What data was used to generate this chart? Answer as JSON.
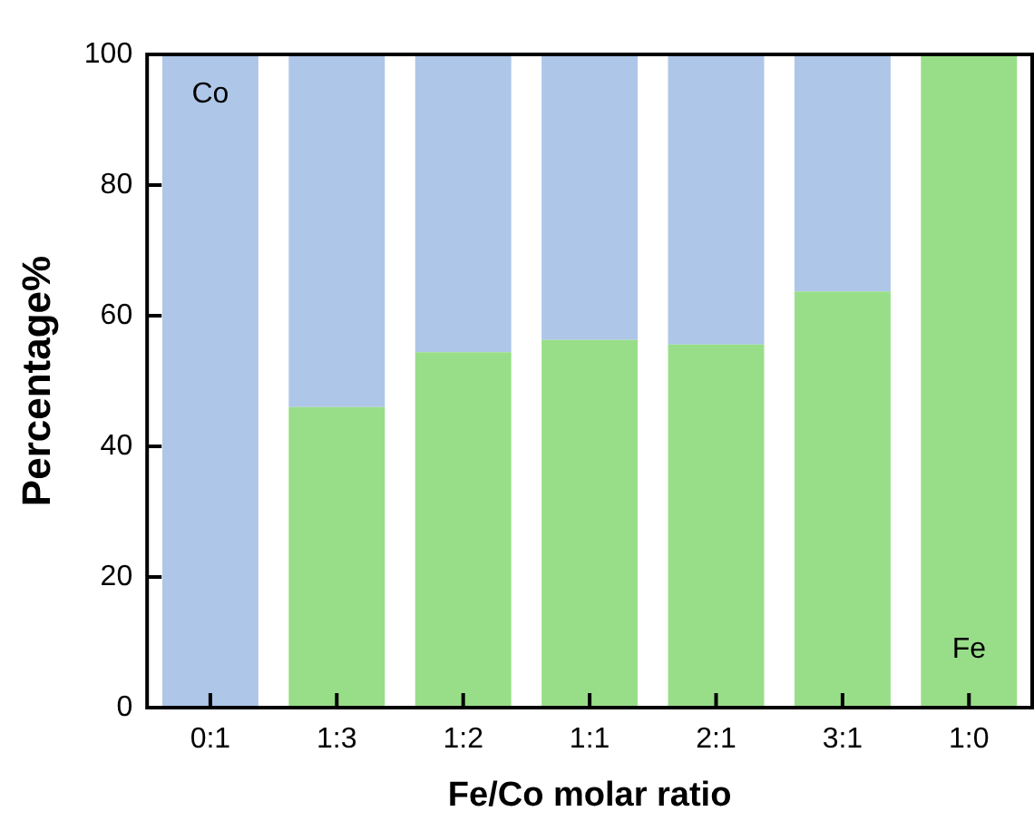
{
  "chart_data": {
    "type": "bar",
    "stacked": true,
    "xlabel": "Fe/Co molar ratio",
    "ylabel": "Percentage%",
    "categories": [
      "0:1",
      "1:3",
      "1:2",
      "1:1",
      "2:1",
      "3:1",
      "1:0"
    ],
    "series": [
      {
        "name": "Fe",
        "color": "#98de88",
        "values": [
          0,
          46,
          54.4,
          56.3,
          55.6,
          63.7,
          100
        ]
      },
      {
        "name": "Co",
        "color": "#aec6e8",
        "values": [
          100,
          54,
          45.6,
          43.7,
          44.4,
          36.3,
          0
        ]
      }
    ],
    "ylim": [
      0,
      100
    ],
    "yticks": [
      0,
      20,
      40,
      60,
      80,
      100
    ],
    "grid": false,
    "legend": false
  }
}
